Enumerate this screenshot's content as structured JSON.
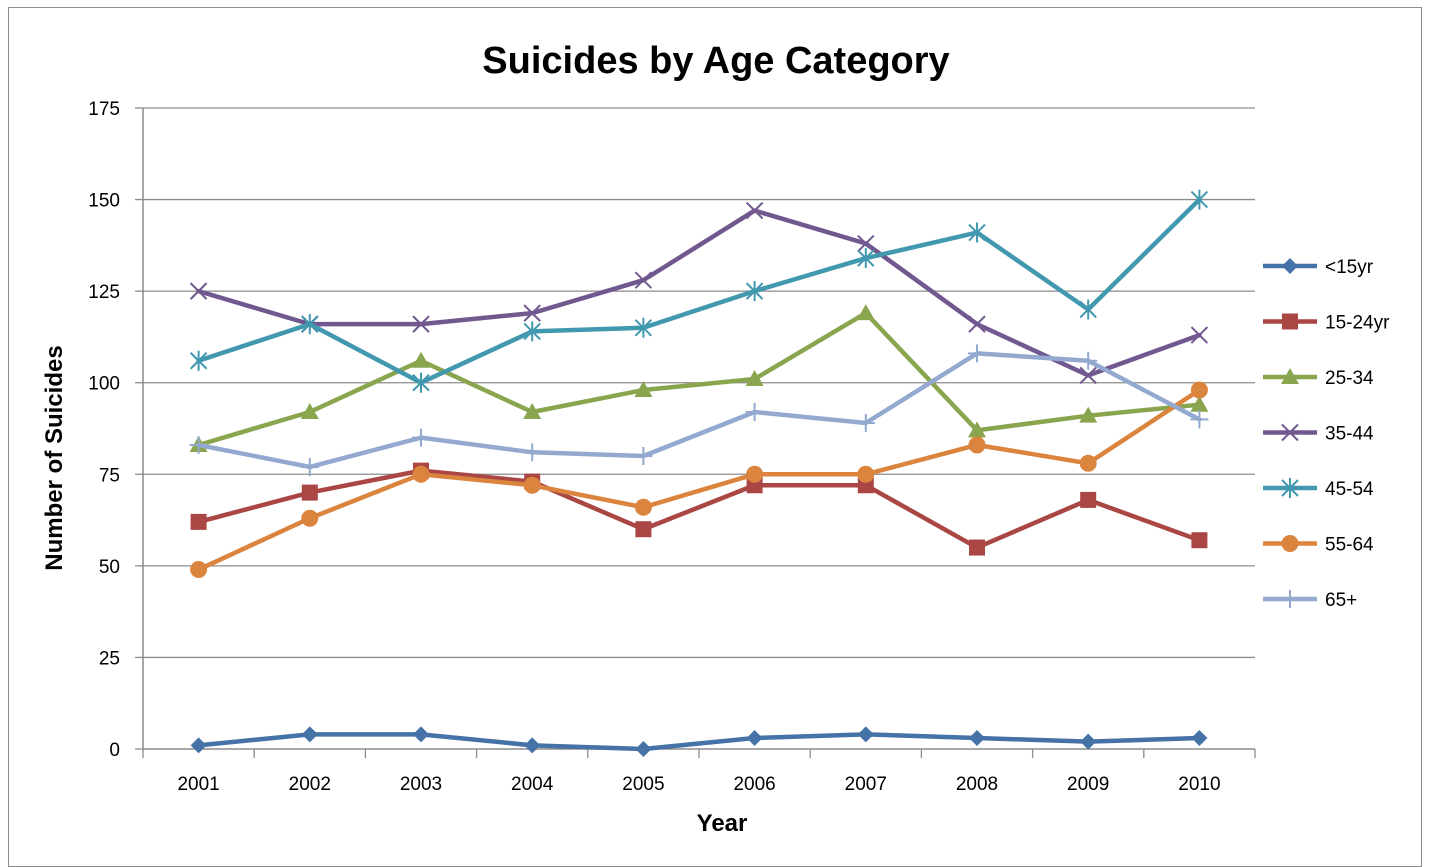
{
  "chart_data": {
    "type": "line",
    "title": "Suicides by Age Category",
    "xlabel": "Year",
    "ylabel": "Number of Suicides",
    "x": [
      "2001",
      "2002",
      "2003",
      "2004",
      "2005",
      "2006",
      "2007",
      "2008",
      "2009",
      "2010"
    ],
    "ylim": [
      0,
      175
    ],
    "yticks": [
      "0",
      "25",
      "50",
      "75",
      "100",
      "125",
      "150",
      "175"
    ],
    "grid": true,
    "legend_position": "right",
    "series": [
      {
        "name": "<15yr",
        "color": "#4572A7",
        "marker": "diamond",
        "values": [
          1,
          4,
          4,
          1,
          0,
          3,
          4,
          3,
          2,
          3
        ]
      },
      {
        "name": "15-24yr",
        "color": "#AA4643",
        "marker": "square",
        "values": [
          62,
          70,
          76,
          73,
          60,
          72,
          72,
          55,
          68,
          57
        ]
      },
      {
        "name": "25-34",
        "color": "#89A54E",
        "marker": "triangle",
        "values": [
          83,
          92,
          106,
          92,
          98,
          101,
          119,
          87,
          91,
          94
        ]
      },
      {
        "name": "35-44",
        "color": "#71588F",
        "marker": "x",
        "values": [
          125,
          116,
          116,
          119,
          128,
          147,
          138,
          116,
          102,
          113
        ]
      },
      {
        "name": "45-54",
        "color": "#4198AF",
        "marker": "star",
        "values": [
          106,
          116,
          100,
          114,
          115,
          125,
          134,
          141,
          120,
          150
        ]
      },
      {
        "name": "55-64",
        "color": "#DB843D",
        "marker": "circle",
        "values": [
          49,
          63,
          75,
          72,
          66,
          75,
          75,
          83,
          78,
          98
        ]
      },
      {
        "name": "65+",
        "color": "#93A9CF",
        "marker": "plus",
        "values": [
          83,
          77,
          85,
          81,
          80,
          92,
          89,
          108,
          106,
          90
        ]
      }
    ]
  }
}
